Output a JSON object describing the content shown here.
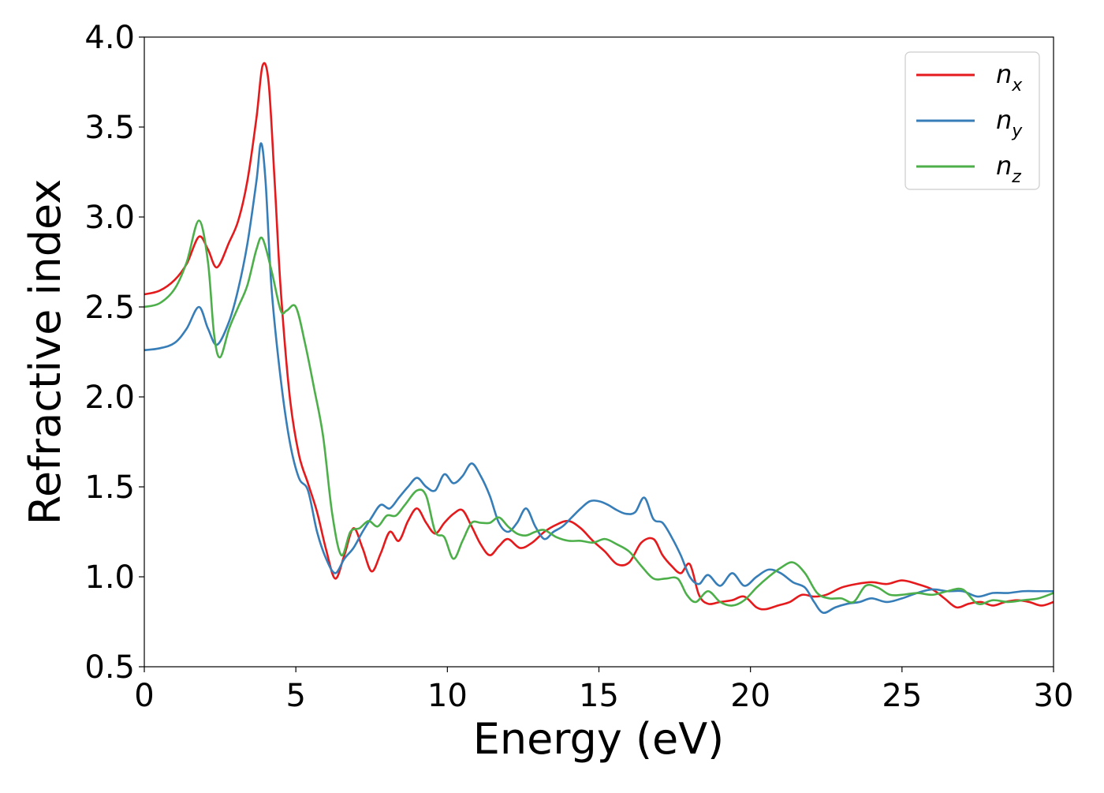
{
  "chart_data": {
    "type": "line",
    "title": "",
    "xlabel": "Energy (eV)",
    "ylabel": "Refractive index",
    "xlim": [
      0,
      30
    ],
    "ylim": [
      0.5,
      4.0
    ],
    "xticks": [
      0,
      5,
      10,
      15,
      20,
      25,
      30
    ],
    "xtick_labels": [
      "0",
      "5",
      "10",
      "15",
      "20",
      "25",
      "30"
    ],
    "yticks": [
      0.5,
      1.0,
      1.5,
      2.0,
      2.5,
      3.0,
      3.5,
      4.0
    ],
    "ytick_labels": [
      "0.5",
      "1.0",
      "1.5",
      "2.0",
      "2.5",
      "3.0",
      "3.5",
      "4.0"
    ],
    "grid": false,
    "legend_position": "top-right",
    "series": [
      {
        "name": "n_x",
        "label_main": "n",
        "label_sub": "x",
        "color": "#e41a1c",
        "x": [
          0,
          0.5,
          1.0,
          1.4,
          1.8,
          2.1,
          2.4,
          2.8,
          3.1,
          3.4,
          3.7,
          3.9,
          4.1,
          4.3,
          4.5,
          4.8,
          5.1,
          5.4,
          5.7,
          6.0,
          6.3,
          6.6,
          6.9,
          7.2,
          7.5,
          7.8,
          8.1,
          8.4,
          8.7,
          9.0,
          9.3,
          9.6,
          9.9,
          10.2,
          10.5,
          10.8,
          11.1,
          11.4,
          11.7,
          12.0,
          12.4,
          12.8,
          13.2,
          13.6,
          14.0,
          14.4,
          14.8,
          15.2,
          15.6,
          16.0,
          16.4,
          16.8,
          17.1,
          17.4,
          17.7,
          18.0,
          18.3,
          18.6,
          19.0,
          19.4,
          19.8,
          20.2,
          20.5,
          20.9,
          21.3,
          21.7,
          22.1,
          22.5,
          23.0,
          23.5,
          24.0,
          24.5,
          25.0,
          25.5,
          26.0,
          26.4,
          26.8,
          27.2,
          27.6,
          28.0,
          28.4,
          28.8,
          29.2,
          29.6,
          30.0
        ],
        "y": [
          2.57,
          2.59,
          2.65,
          2.74,
          2.89,
          2.82,
          2.72,
          2.86,
          2.98,
          3.2,
          3.55,
          3.84,
          3.75,
          3.2,
          2.6,
          2.0,
          1.68,
          1.52,
          1.36,
          1.15,
          0.99,
          1.12,
          1.27,
          1.16,
          1.03,
          1.13,
          1.25,
          1.2,
          1.31,
          1.38,
          1.3,
          1.24,
          1.3,
          1.35,
          1.37,
          1.28,
          1.18,
          1.12,
          1.17,
          1.21,
          1.16,
          1.19,
          1.25,
          1.29,
          1.31,
          1.27,
          1.2,
          1.14,
          1.07,
          1.08,
          1.19,
          1.21,
          1.12,
          1.06,
          1.02,
          1.07,
          0.9,
          0.85,
          0.86,
          0.87,
          0.89,
          0.83,
          0.82,
          0.84,
          0.86,
          0.9,
          0.89,
          0.9,
          0.94,
          0.96,
          0.97,
          0.96,
          0.98,
          0.96,
          0.93,
          0.88,
          0.83,
          0.85,
          0.86,
          0.84,
          0.86,
          0.87,
          0.86,
          0.84,
          0.86
        ]
      },
      {
        "name": "n_y",
        "label_main": "n",
        "label_sub": "y",
        "color": "#377eb8",
        "x": [
          0,
          0.5,
          1.0,
          1.4,
          1.8,
          2.1,
          2.4,
          2.8,
          3.1,
          3.4,
          3.7,
          3.85,
          4.0,
          4.2,
          4.5,
          4.8,
          5.1,
          5.4,
          5.7,
          6.0,
          6.3,
          6.6,
          6.9,
          7.2,
          7.5,
          7.8,
          8.1,
          8.4,
          8.7,
          9.0,
          9.3,
          9.6,
          9.9,
          10.2,
          10.5,
          10.8,
          11.1,
          11.4,
          11.7,
          12.0,
          12.3,
          12.6,
          12.9,
          13.2,
          13.5,
          13.8,
          14.1,
          14.4,
          14.7,
          15.0,
          15.3,
          15.6,
          15.9,
          16.2,
          16.5,
          16.8,
          17.1,
          17.4,
          17.7,
          18.0,
          18.3,
          18.6,
          19.0,
          19.4,
          19.8,
          20.2,
          20.6,
          21.0,
          21.4,
          21.8,
          22.1,
          22.4,
          22.8,
          23.2,
          23.6,
          24.0,
          24.5,
          25.0,
          25.5,
          26.0,
          26.5,
          27.0,
          27.5,
          28.0,
          28.5,
          29.0,
          29.5,
          30.0
        ],
        "y": [
          2.26,
          2.27,
          2.3,
          2.38,
          2.5,
          2.38,
          2.29,
          2.42,
          2.6,
          2.85,
          3.2,
          3.41,
          3.2,
          2.6,
          2.1,
          1.75,
          1.55,
          1.48,
          1.25,
          1.1,
          1.02,
          1.1,
          1.16,
          1.25,
          1.33,
          1.4,
          1.38,
          1.44,
          1.5,
          1.55,
          1.5,
          1.48,
          1.57,
          1.52,
          1.56,
          1.63,
          1.56,
          1.45,
          1.3,
          1.25,
          1.3,
          1.38,
          1.28,
          1.21,
          1.25,
          1.28,
          1.33,
          1.38,
          1.42,
          1.42,
          1.4,
          1.37,
          1.35,
          1.36,
          1.44,
          1.32,
          1.3,
          1.22,
          1.12,
          1.0,
          0.96,
          1.01,
          0.95,
          1.02,
          0.95,
          1.0,
          1.04,
          1.02,
          0.97,
          0.94,
          0.86,
          0.8,
          0.83,
          0.85,
          0.86,
          0.88,
          0.86,
          0.88,
          0.91,
          0.93,
          0.92,
          0.92,
          0.89,
          0.91,
          0.91,
          0.92,
          0.92,
          0.92
        ]
      },
      {
        "name": "n_z",
        "label_main": "n",
        "label_sub": "z",
        "color": "#4daf4a",
        "x": [
          0,
          0.5,
          1.0,
          1.4,
          1.8,
          2.1,
          2.3,
          2.5,
          2.8,
          3.1,
          3.4,
          3.7,
          3.9,
          4.2,
          4.5,
          4.7,
          5.0,
          5.3,
          5.6,
          5.9,
          6.2,
          6.5,
          6.8,
          7.1,
          7.4,
          7.7,
          8.0,
          8.3,
          8.6,
          9.0,
          9.3,
          9.6,
          9.9,
          10.2,
          10.5,
          10.8,
          11.1,
          11.4,
          11.7,
          12.0,
          12.3,
          12.6,
          12.9,
          13.2,
          13.6,
          14.0,
          14.4,
          14.8,
          15.2,
          15.6,
          16.0,
          16.4,
          16.8,
          17.2,
          17.6,
          17.9,
          18.2,
          18.6,
          19.0,
          19.4,
          19.8,
          20.2,
          20.6,
          21.0,
          21.4,
          21.8,
          22.2,
          22.6,
          23.0,
          23.4,
          23.8,
          24.2,
          24.6,
          25.0,
          25.5,
          26.0,
          26.5,
          27.0,
          27.5,
          28.0,
          28.5,
          29.0,
          29.5,
          30.0
        ],
        "y": [
          2.5,
          2.52,
          2.6,
          2.75,
          2.98,
          2.75,
          2.35,
          2.22,
          2.38,
          2.5,
          2.62,
          2.82,
          2.88,
          2.7,
          2.48,
          2.48,
          2.5,
          2.3,
          2.05,
          1.78,
          1.35,
          1.12,
          1.25,
          1.27,
          1.31,
          1.28,
          1.34,
          1.34,
          1.4,
          1.48,
          1.45,
          1.25,
          1.22,
          1.1,
          1.2,
          1.3,
          1.3,
          1.3,
          1.33,
          1.28,
          1.24,
          1.23,
          1.25,
          1.26,
          1.22,
          1.2,
          1.2,
          1.19,
          1.21,
          1.18,
          1.14,
          1.06,
          0.99,
          0.99,
          0.99,
          0.9,
          0.86,
          0.92,
          0.86,
          0.84,
          0.87,
          0.94,
          1.0,
          1.05,
          1.08,
          1.02,
          0.91,
          0.88,
          0.88,
          0.86,
          0.95,
          0.94,
          0.9,
          0.9,
          0.91,
          0.9,
          0.92,
          0.93,
          0.85,
          0.87,
          0.86,
          0.87,
          0.88,
          0.91
        ]
      }
    ]
  }
}
